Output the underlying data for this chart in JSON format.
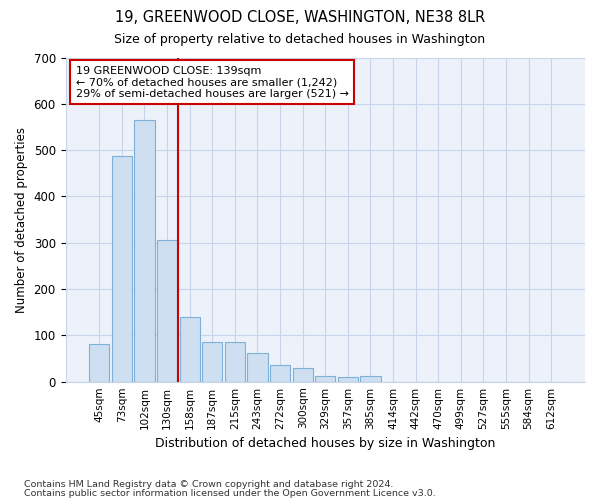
{
  "title1": "19, GREENWOOD CLOSE, WASHINGTON, NE38 8LR",
  "title2": "Size of property relative to detached houses in Washington",
  "xlabel": "Distribution of detached houses by size in Washington",
  "ylabel": "Number of detached properties",
  "footer1": "Contains HM Land Registry data © Crown copyright and database right 2024.",
  "footer2": "Contains public sector information licensed under the Open Government Licence v3.0.",
  "bar_labels": [
    "45sqm",
    "73sqm",
    "102sqm",
    "130sqm",
    "158sqm",
    "187sqm",
    "215sqm",
    "243sqm",
    "272sqm",
    "300sqm",
    "329sqm",
    "357sqm",
    "385sqm",
    "414sqm",
    "442sqm",
    "470sqm",
    "499sqm",
    "527sqm",
    "555sqm",
    "584sqm",
    "612sqm"
  ],
  "bar_values": [
    82,
    488,
    565,
    305,
    140,
    85,
    85,
    62,
    35,
    30,
    12,
    10,
    12,
    0,
    0,
    0,
    0,
    0,
    0,
    0,
    0
  ],
  "bar_color": "#cddff0",
  "bar_edge_color": "#7fb0d8",
  "red_line_x": 3.5,
  "red_line_color": "#cc0000",
  "annotation_line1": "19 GREENWOOD CLOSE: 139sqm",
  "annotation_line2": "← 70% of detached houses are smaller (1,242)",
  "annotation_line3": "29% of semi-detached houses are larger (521) →",
  "annotation_box_color": "#ffffff",
  "annotation_box_edge": "#cc0000",
  "ylim": [
    0,
    700
  ],
  "yticks": [
    0,
    100,
    200,
    300,
    400,
    500,
    600,
    700
  ],
  "grid_color": "#c8d4e8",
  "bg_color": "#ffffff",
  "plot_bg_color": "#edf2fa"
}
